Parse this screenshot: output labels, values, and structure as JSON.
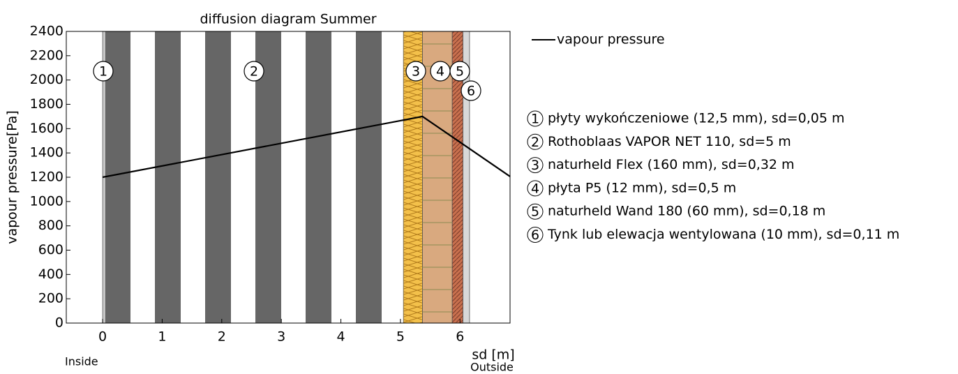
{
  "chart_data": {
    "type": "line",
    "title": "diffusion diagram Summer",
    "xlabel": "sd [m]",
    "ylabel": "vapour pressure[Pa]",
    "annotations": {
      "inside": "Inside",
      "outside": "Outside"
    },
    "xlim": [
      -0.61,
      6.84
    ],
    "xticks": [
      0,
      1,
      2,
      3,
      4,
      5,
      6
    ],
    "ylim": [
      0,
      2400
    ],
    "yticks": [
      0,
      200,
      400,
      600,
      800,
      1000,
      1200,
      1400,
      1600,
      1800,
      2000,
      2200,
      2400
    ],
    "series": [
      {
        "name": "vapour pressure",
        "color": "#000000",
        "x": [
          0,
          5.37,
          6.84
        ],
        "values": [
          1200,
          1700,
          1206
        ]
      }
    ],
    "layers": [
      {
        "id": "1",
        "name": "płyty wykończeniowe (12,5 mm), sd=0,05 m",
        "start": 0,
        "end": 0.05,
        "color": "#c8c8c8"
      },
      {
        "id": "2",
        "name": "Rothoblaas VAPOR NET 110, sd=5 m",
        "start": 0.05,
        "end": 5.05,
        "color": "#666666"
      },
      {
        "id": "3",
        "name": "naturheld Flex (160 mm), sd=0,32 m",
        "start": 5.05,
        "end": 5.37,
        "color": "#f3c04a"
      },
      {
        "id": "4",
        "name": "płyta P5 (12 mm), sd=0,5 m",
        "start": 5.37,
        "end": 5.87,
        "color": "#d9a97f"
      },
      {
        "id": "5",
        "name": "naturheld Wand 180 (60 mm), sd=0,18 m",
        "start": 5.87,
        "end": 6.05,
        "color": "#c8704e"
      },
      {
        "id": "6",
        "name": "Tynk lub elewacja wentylowana (10 mm), sd=0,11 m",
        "start": 6.05,
        "end": 6.16,
        "color": "#d8d8d8"
      }
    ]
  }
}
